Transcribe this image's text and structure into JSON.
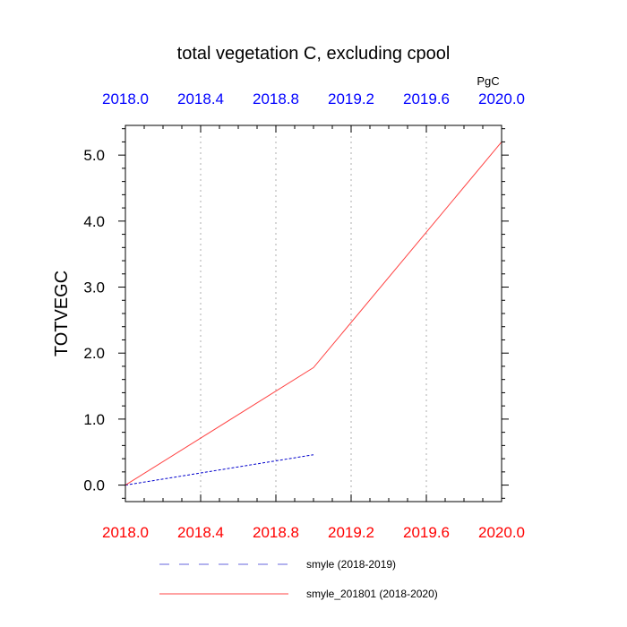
{
  "chart_data": {
    "type": "line",
    "title": "total vegetation C, excluding cpool",
    "units": "PgC",
    "ylabel": "TOTVEGC",
    "xlim": [
      2018.0,
      2020.0
    ],
    "ylim": [
      -0.25,
      5.45
    ],
    "x_ticks": [
      "2018.0",
      "2018.4",
      "2018.8",
      "2019.2",
      "2019.6",
      "2020.0"
    ],
    "x_tick_values": [
      2018.0,
      2018.4,
      2018.8,
      2019.2,
      2019.6,
      2020.0
    ],
    "y_ticks": [
      "0.0",
      "1.0",
      "2.0",
      "3.0",
      "4.0",
      "5.0"
    ],
    "y_tick_values": [
      0,
      1,
      2,
      3,
      4,
      5
    ],
    "grid": "vertical dotted",
    "legend_position": "bottom",
    "colors": {
      "top_tick_labels": "#0000ff",
      "bottom_tick_labels": "#ff0000",
      "grid": "#bbbbbb",
      "axis": "#000000"
    },
    "series": [
      {
        "name": "smyle (2018-2019)",
        "color": "#0000cc",
        "dash": "dashed",
        "x": [
          2018.0,
          2019.0
        ],
        "y": [
          0.0,
          0.46
        ]
      },
      {
        "name": "smyle_201801 (2018-2020)",
        "color": "#ff4444",
        "dash": "solid",
        "x": [
          2018.0,
          2019.0,
          2020.0
        ],
        "y": [
          0.0,
          1.78,
          5.2
        ]
      }
    ]
  }
}
